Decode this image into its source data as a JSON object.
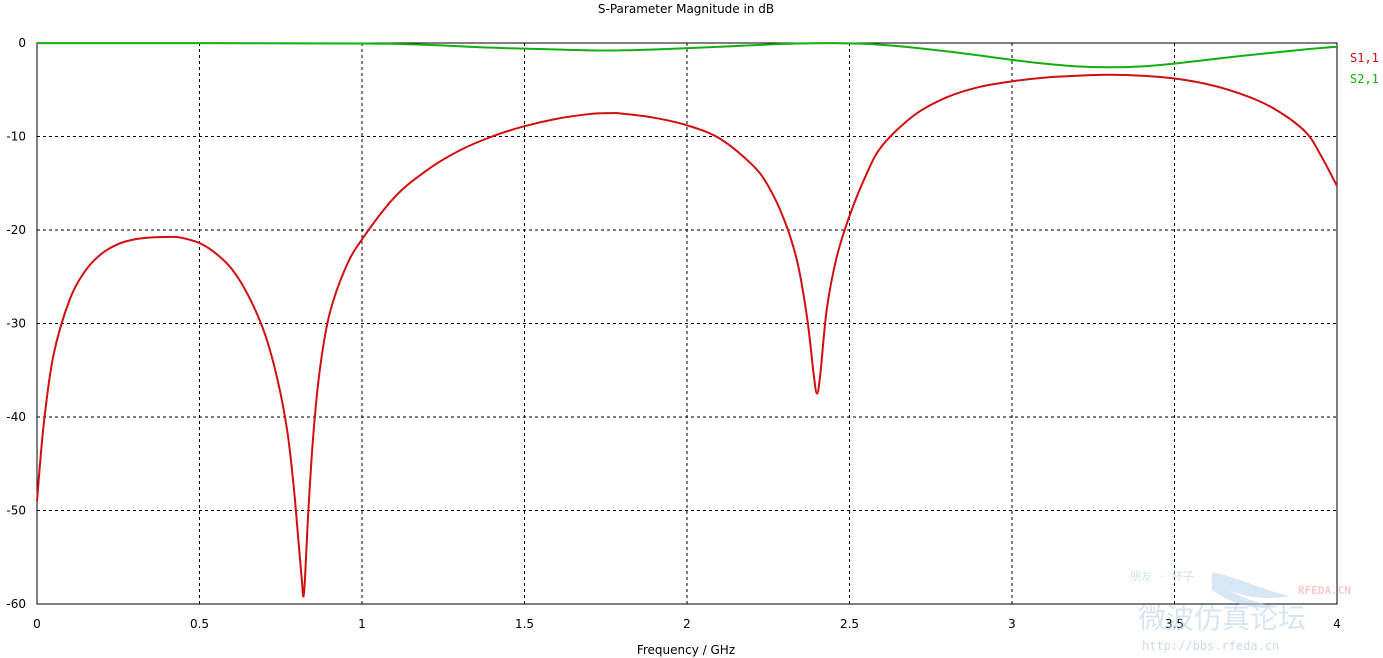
{
  "chart_data": {
    "type": "line",
    "title": "S-Parameter Magnitude in dB",
    "xlabel": "Frequency / GHz",
    "ylabel": "",
    "xlim": [
      0,
      4
    ],
    "ylim": [
      -60,
      0
    ],
    "xticks": [
      0,
      0.5,
      1,
      1.5,
      2,
      2.5,
      3,
      3.5,
      4
    ],
    "xtick_labels": [
      "0",
      "0.5",
      "1",
      "1.5",
      "2",
      "2.5",
      "3",
      "3.5",
      "4"
    ],
    "yticks": [
      0,
      -10,
      -20,
      -30,
      -40,
      -50,
      -60
    ],
    "ytick_labels": [
      "0",
      "-10",
      "-20",
      "-30",
      "-40",
      "-50",
      "-60"
    ],
    "grid": true,
    "legend_position": "right",
    "series": [
      {
        "name": "S1,1",
        "color": "#d01010",
        "x": [
          0.0,
          0.02,
          0.05,
          0.1,
          0.15,
          0.2,
          0.25,
          0.3,
          0.35,
          0.4,
          0.44,
          0.5,
          0.55,
          0.6,
          0.65,
          0.7,
          0.74,
          0.77,
          0.79,
          0.805,
          0.815,
          0.82,
          0.825,
          0.835,
          0.85,
          0.87,
          0.9,
          0.95,
          1.0,
          1.1,
          1.2,
          1.3,
          1.4,
          1.5,
          1.6,
          1.7,
          1.76,
          1.8,
          1.9,
          2.0,
          2.1,
          2.2,
          2.25,
          2.3,
          2.34,
          2.37,
          2.39,
          2.4,
          2.41,
          2.43,
          2.46,
          2.5,
          2.55,
          2.6,
          2.7,
          2.8,
          2.9,
          3.0,
          3.1,
          3.2,
          3.3,
          3.4,
          3.5,
          3.6,
          3.7,
          3.8,
          3.9,
          3.95,
          4.0
        ],
        "values": [
          -49,
          -41,
          -33.5,
          -27.5,
          -24.3,
          -22.5,
          -21.5,
          -21.0,
          -20.8,
          -20.75,
          -20.8,
          -21.4,
          -22.5,
          -24.2,
          -27.0,
          -31.0,
          -36.0,
          -41.5,
          -47.5,
          -53.5,
          -57.5,
          -59.2,
          -57.0,
          -50.0,
          -42.0,
          -35.0,
          -29.0,
          -24.0,
          -21.0,
          -16.5,
          -13.6,
          -11.5,
          -10.0,
          -8.9,
          -8.1,
          -7.6,
          -7.5,
          -7.55,
          -8.0,
          -8.8,
          -10.2,
          -13.0,
          -15.3,
          -19.0,
          -23.5,
          -29.5,
          -35.5,
          -37.5,
          -35.5,
          -28.5,
          -23.0,
          -18.5,
          -14.2,
          -11.0,
          -7.7,
          -5.8,
          -4.7,
          -4.1,
          -3.7,
          -3.5,
          -3.4,
          -3.5,
          -3.8,
          -4.4,
          -5.4,
          -6.9,
          -9.4,
          -12.0,
          -15.3
        ]
      },
      {
        "name": "S2,1",
        "color": "#10b010",
        "x": [
          0.0,
          0.5,
          1.0,
          1.2,
          1.4,
          1.6,
          1.75,
          1.9,
          2.1,
          2.3,
          2.45,
          2.6,
          2.8,
          3.0,
          3.1,
          3.2,
          3.3,
          3.4,
          3.5,
          3.7,
          3.9,
          4.0
        ],
        "values": [
          -0.02,
          -0.02,
          -0.05,
          -0.2,
          -0.5,
          -0.7,
          -0.8,
          -0.7,
          -0.4,
          -0.1,
          -0.02,
          -0.2,
          -0.9,
          -1.8,
          -2.2,
          -2.5,
          -2.6,
          -2.5,
          -2.2,
          -1.4,
          -0.7,
          -0.4
        ]
      }
    ]
  },
  "watermark": {
    "site": "RFEDA.CN",
    "url": "http://bbs.rfeda.cn",
    "chinese_title": "微波仿真论坛",
    "chinese_small": "朋友 · 杯子"
  }
}
